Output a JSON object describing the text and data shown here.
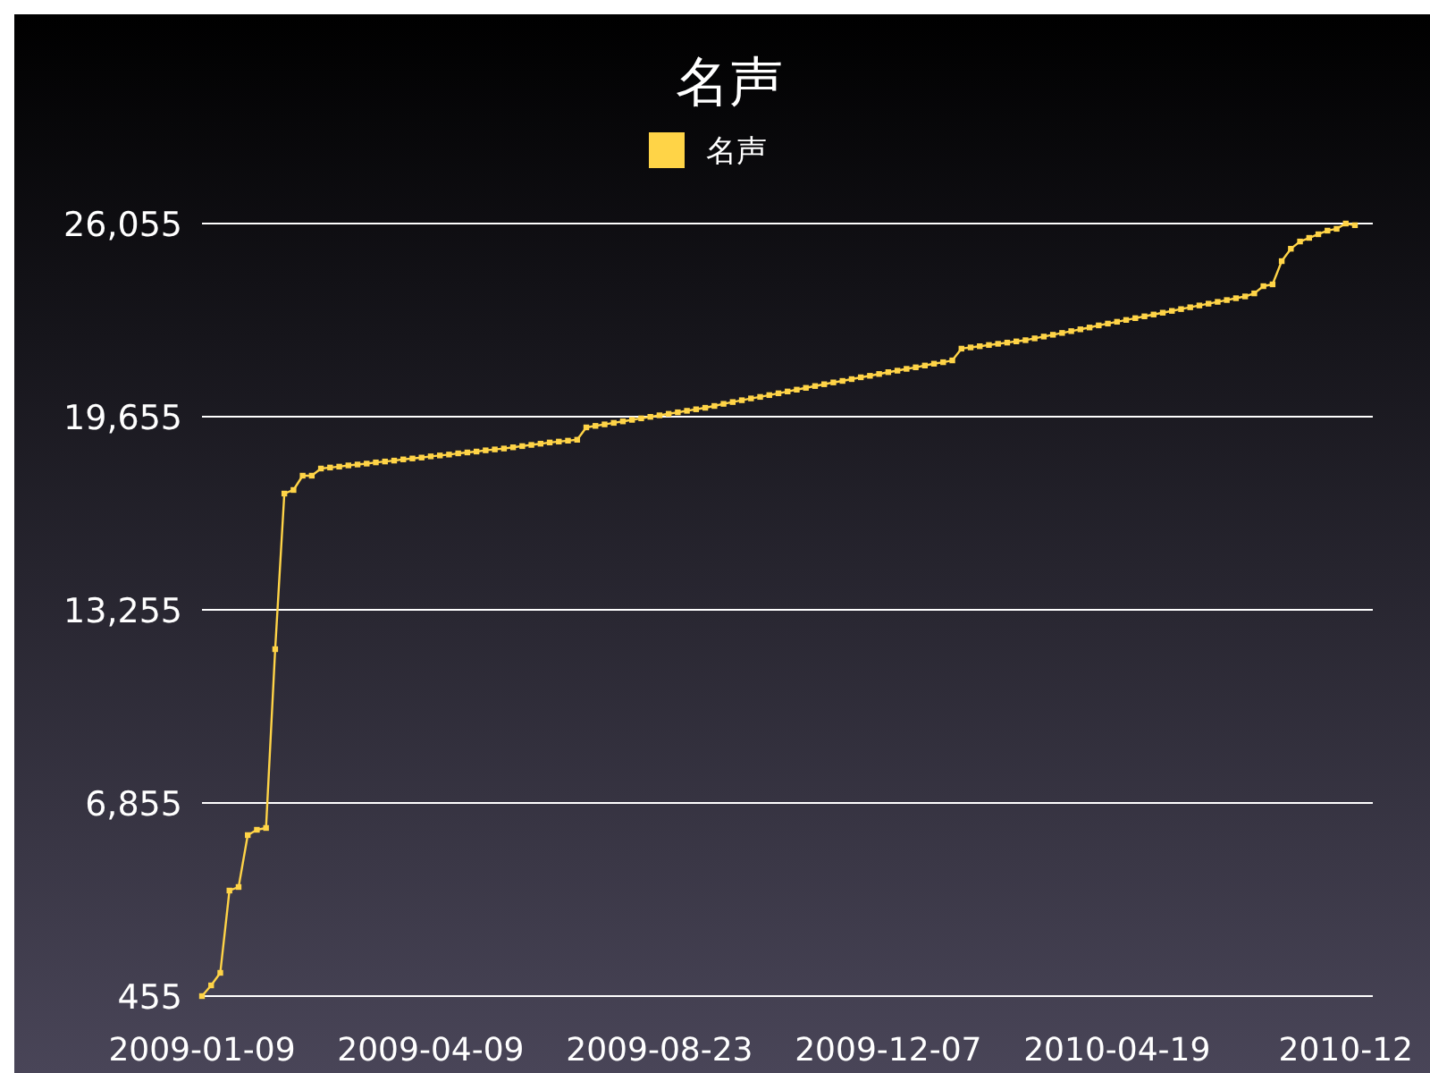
{
  "chart_data": {
    "type": "line",
    "title": "名声",
    "legend": "top",
    "grid": "y",
    "marker": "square",
    "categories": [
      "2009-01-09",
      null,
      null,
      null,
      null,
      null,
      null,
      null,
      null,
      null,
      null,
      null,
      null,
      null,
      null,
      null,
      null,
      null,
      null,
      null,
      null,
      null,
      null,
      null,
      null,
      "2009-04-09",
      null,
      null,
      null,
      null,
      null,
      null,
      null,
      null,
      null,
      null,
      null,
      null,
      null,
      null,
      null,
      null,
      null,
      null,
      null,
      null,
      null,
      null,
      null,
      null,
      "2009-08-23",
      null,
      null,
      null,
      null,
      null,
      null,
      null,
      null,
      null,
      null,
      null,
      null,
      null,
      null,
      null,
      null,
      null,
      null,
      null,
      null,
      null,
      null,
      null,
      null,
      "2009-12-07",
      null,
      null,
      null,
      null,
      null,
      null,
      null,
      null,
      null,
      null,
      null,
      null,
      null,
      null,
      null,
      null,
      null,
      null,
      null,
      null,
      null,
      null,
      null,
      null,
      "2010-04-19",
      null,
      null,
      null,
      null,
      null,
      null,
      null,
      null,
      null,
      null,
      null,
      null,
      null,
      null,
      null,
      null,
      null,
      null,
      null,
      null,
      null,
      null,
      null,
      null,
      "2010-12",
      null
    ],
    "ylim": [
      455,
      26055
    ],
    "yticks": [
      455,
      {
        "value": 6855,
        "label": "6,855"
      },
      {
        "value": 13255,
        "label": "13,255"
      },
      {
        "value": 19655,
        "label": "19,655"
      },
      {
        "value": 26055,
        "label": "26,055"
      }
    ],
    "series": [
      {
        "name": "名声",
        "color": "#ffd447",
        "values": [
          455,
          810,
          1226,
          3952,
          4070,
          5790,
          5966,
          6026,
          11951,
          17107,
          17226,
          17700,
          17700,
          17937,
          17970,
          18000,
          18040,
          18070,
          18100,
          18140,
          18170,
          18200,
          18240,
          18270,
          18300,
          18340,
          18370,
          18400,
          18440,
          18470,
          18500,
          18540,
          18570,
          18600,
          18640,
          18680,
          18720,
          18760,
          18800,
          18830,
          18860,
          18890,
          19300,
          19350,
          19400,
          19450,
          19500,
          19550,
          19600,
          19650,
          19700,
          19750,
          19800,
          19850,
          19900,
          19950,
          20010,
          20080,
          20140,
          20200,
          20260,
          20310,
          20370,
          20430,
          20490,
          20550,
          20610,
          20670,
          20730,
          20790,
          20840,
          20900,
          20960,
          21010,
          21070,
          21130,
          21180,
          21240,
          21290,
          21350,
          21410,
          21460,
          21520,
          21910,
          21950,
          21990,
          22030,
          22070,
          22110,
          22150,
          22190,
          22250,
          22310,
          22370,
          22430,
          22490,
          22550,
          22610,
          22680,
          22740,
          22800,
          22860,
          22920,
          22980,
          23040,
          23100,
          23160,
          23220,
          23280,
          23340,
          23400,
          23460,
          23520,
          23580,
          23640,
          23740,
          23980,
          24040,
          24810,
          25220,
          25460,
          25580,
          25700,
          25820,
          25880,
          26055,
          26000
        ]
      }
    ]
  }
}
